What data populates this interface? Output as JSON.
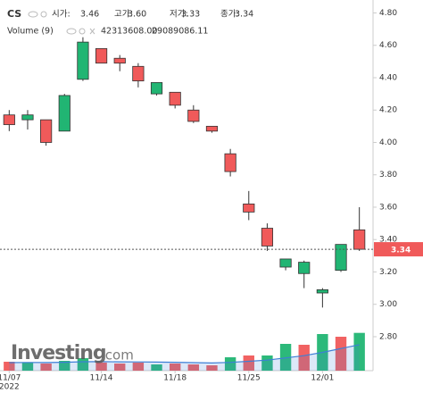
{
  "chart_data": {
    "type": "candlestick",
    "symbol": "CS",
    "ohlc_fields": [
      {
        "label": "시가:",
        "value": "3.46"
      },
      {
        "label": "고가:",
        "value": "3.60"
      },
      {
        "label": "저가:",
        "value": "3.33"
      },
      {
        "label": "종가:",
        "value": "3.34"
      }
    ],
    "volume_label": "Volume (9)",
    "volume_value_label": "42313608.00",
    "volume_ma_label": "29089086.11",
    "logo": "Investing",
    "logo_suffix": ".com",
    "categories": [
      "11/07",
      null,
      null,
      null,
      null,
      "11/14",
      null,
      null,
      null,
      "11/18",
      null,
      null,
      null,
      "11/25",
      null,
      null,
      null,
      "12/01",
      null,
      null
    ],
    "year_label": "2022",
    "open": [
      4.17,
      4.14,
      4.14,
      4.07,
      4.39,
      4.58,
      4.52,
      4.47,
      4.3,
      4.31,
      4.2,
      4.1,
      3.93,
      3.62,
      3.47,
      3.23,
      3.19,
      3.07,
      3.21,
      3.46
    ],
    "high": [
      4.2,
      4.2,
      4.14,
      4.3,
      4.65,
      4.58,
      4.54,
      4.49,
      4.37,
      4.31,
      4.23,
      4.1,
      3.96,
      3.7,
      3.5,
      3.28,
      3.27,
      3.1,
      3.37,
      3.6
    ],
    "low": [
      4.07,
      4.08,
      3.98,
      4.07,
      4.38,
      4.49,
      4.44,
      4.34,
      4.29,
      4.21,
      4.12,
      4.06,
      3.79,
      3.52,
      3.33,
      3.21,
      3.1,
      2.98,
      3.2,
      3.33
    ],
    "close": [
      4.11,
      4.17,
      4.0,
      4.29,
      4.62,
      4.49,
      4.49,
      4.38,
      4.37,
      4.23,
      4.13,
      4.07,
      3.82,
      3.57,
      3.36,
      3.28,
      3.26,
      3.09,
      3.37,
      3.34
    ],
    "volume": [
      10000000,
      9000000,
      8000000,
      11000000,
      14000000,
      9000000,
      8000000,
      9000000,
      7000000,
      8000000,
      7000000,
      6000000,
      15000000,
      17000000,
      17000000,
      30000000,
      29000000,
      41000000,
      38000000,
      42313608
    ],
    "volume_colors": [
      "#f05a5a",
      "#21b573",
      "#f05a5a",
      "#21b573",
      "#21b573",
      "#f05a5a",
      "#f05a5a",
      "#f05a5a",
      "#21b573",
      "#f05a5a",
      "#f05a5a",
      "#f05a5a",
      "#21b573",
      "#f05a5a",
      "#21b573",
      "#21b573",
      "#f05a5a",
      "#21b573",
      "#f05a5a",
      "#21b573"
    ],
    "volume_ma": [
      9000000,
      9200000,
      9100000,
      9400000,
      10000000,
      10100000,
      9900000,
      9800000,
      9600000,
      9400000,
      9000000,
      8600000,
      9300000,
      10500000,
      11800000,
      14300000,
      16800000,
      20500000,
      24800000,
      29089086.11
    ],
    "volume_ylim": [
      0,
      75000000
    ],
    "ylim": [
      2.59,
      4.88
    ],
    "yticks": [
      {
        "value": 2.8,
        "label": "2.80"
      },
      {
        "value": 3.0,
        "label": "3.00"
      },
      {
        "value": 3.2,
        "label": "3.20"
      },
      {
        "value": 3.4,
        "label": "3.40"
      },
      {
        "value": 3.6,
        "label": "3.60"
      },
      {
        "value": 3.8,
        "label": "3.80"
      },
      {
        "value": 4.0,
        "label": "4.00"
      },
      {
        "value": 4.2,
        "label": "4.20"
      },
      {
        "value": 4.4,
        "label": "4.40"
      },
      {
        "value": 4.6,
        "label": "4.60"
      },
      {
        "value": 4.8,
        "label": "4.80"
      }
    ],
    "up_color": "#21b573",
    "down_color": "#f05a5a",
    "volume_ma_color": "#3d7fd6",
    "grid": false
  }
}
